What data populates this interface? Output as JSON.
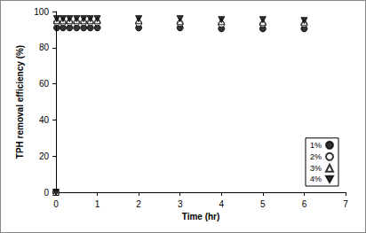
{
  "chart_data": {
    "type": "scatter",
    "x_label": "Time (hr)",
    "y_label": "TPH removal efficiency (%)",
    "x": [
      0,
      0.02,
      0.17,
      0.33,
      0.5,
      0.67,
      0.83,
      1,
      2,
      3,
      4,
      5,
      6
    ],
    "series": [
      {
        "name": "1%",
        "color": "#000000",
        "marker": "filled_circle",
        "values": [
          0,
          91,
          91,
          91,
          91,
          91,
          91,
          91,
          91,
          91,
          90.5,
          90.5,
          90.5
        ]
      },
      {
        "name": "2%",
        "color": "#000000",
        "marker": "open_circle",
        "values": [
          0,
          94,
          94,
          94,
          94,
          94,
          94,
          94,
          93.5,
          93.5,
          93,
          93,
          93
        ]
      },
      {
        "name": "3%",
        "color": "#000000",
        "marker": "open_triangle",
        "values": [
          0,
          95,
          95,
          95,
          95,
          95,
          95,
          95,
          95,
          94.5,
          94.5,
          94,
          94
        ]
      },
      {
        "name": "4%",
        "color": "#000000",
        "marker": "filled_triangle_down",
        "values": [
          0,
          96,
          96,
          96,
          96,
          96,
          96,
          96,
          96,
          96,
          95.5,
          95.5,
          95
        ]
      }
    ],
    "xlim": [
      0,
      7
    ],
    "xticks": [
      0,
      1,
      2,
      3,
      4,
      5,
      6,
      7
    ],
    "ylim": [
      0,
      100
    ],
    "yticks": [
      0,
      20,
      40,
      60,
      80,
      100
    ],
    "grid": false,
    "legend": "lower right"
  }
}
